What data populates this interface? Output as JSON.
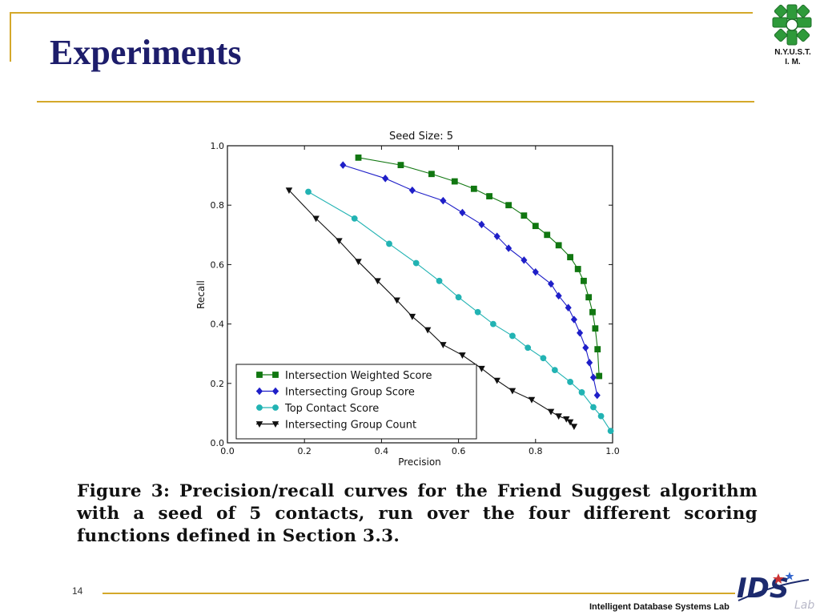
{
  "slide": {
    "title": "Experiments",
    "page_number": "14",
    "footer": "Intelligent Database Systems Lab",
    "logo_text_1": "N.Y.U.S.T.",
    "logo_text_2": "I. M.",
    "lab_logo_text": "IDS",
    "lab_logo_subtext": "Lab",
    "caption": "Figure 3: Precision/recall curves for the Friend Suggest algorithm with a seed of 5 contacts, run over the four different scoring functions defined in Section 3.3."
  },
  "colors": {
    "accent_line": "#d4a82a",
    "title": "#1d1d6b"
  },
  "chart_data": {
    "type": "line",
    "title": "Seed Size: 5",
    "xlabel": "Precision",
    "ylabel": "Recall",
    "xlim": [
      0.0,
      1.0
    ],
    "ylim": [
      0.0,
      1.0
    ],
    "xticks": [
      "0.0",
      "0.2",
      "0.4",
      "0.6",
      "0.8",
      "1.0"
    ],
    "yticks": [
      "0.0",
      "0.2",
      "0.4",
      "0.6",
      "0.8",
      "1.0"
    ],
    "grid": false,
    "legend_position": "lower-left",
    "series": [
      {
        "name": "Intersection Weighted Score",
        "color": "#117711",
        "marker": "square",
        "x": [
          0.34,
          0.45,
          0.53,
          0.59,
          0.64,
          0.68,
          0.73,
          0.77,
          0.8,
          0.83,
          0.86,
          0.89,
          0.91,
          0.925,
          0.938,
          0.948,
          0.955,
          0.961,
          0.965
        ],
        "y": [
          0.96,
          0.935,
          0.905,
          0.88,
          0.855,
          0.83,
          0.8,
          0.765,
          0.73,
          0.7,
          0.665,
          0.625,
          0.585,
          0.545,
          0.49,
          0.44,
          0.385,
          0.315,
          0.225
        ]
      },
      {
        "name": "Intersecting Group Score",
        "color": "#1f1fc8",
        "marker": "diamond",
        "x": [
          0.3,
          0.41,
          0.48,
          0.56,
          0.61,
          0.66,
          0.7,
          0.73,
          0.77,
          0.8,
          0.84,
          0.86,
          0.885,
          0.9,
          0.915,
          0.93,
          0.94,
          0.95,
          0.96
        ],
        "y": [
          0.935,
          0.89,
          0.85,
          0.815,
          0.775,
          0.735,
          0.695,
          0.655,
          0.615,
          0.575,
          0.535,
          0.495,
          0.455,
          0.415,
          0.37,
          0.32,
          0.27,
          0.22,
          0.16
        ]
      },
      {
        "name": "Top Contact Score",
        "color": "#22b3b3",
        "marker": "circle",
        "x": [
          0.21,
          0.33,
          0.42,
          0.49,
          0.55,
          0.6,
          0.65,
          0.69,
          0.74,
          0.78,
          0.82,
          0.85,
          0.89,
          0.92,
          0.95,
          0.97,
          0.995
        ],
        "y": [
          0.845,
          0.755,
          0.67,
          0.605,
          0.545,
          0.49,
          0.44,
          0.4,
          0.36,
          0.32,
          0.285,
          0.245,
          0.205,
          0.17,
          0.12,
          0.09,
          0.04
        ]
      },
      {
        "name": "Intersecting Group Count",
        "color": "#111111",
        "marker": "triangle-down",
        "x": [
          0.16,
          0.23,
          0.29,
          0.34,
          0.39,
          0.44,
          0.48,
          0.52,
          0.56,
          0.61,
          0.66,
          0.7,
          0.74,
          0.79,
          0.84,
          0.86,
          0.88,
          0.89,
          0.9
        ],
        "y": [
          0.85,
          0.755,
          0.68,
          0.61,
          0.545,
          0.48,
          0.425,
          0.38,
          0.33,
          0.295,
          0.25,
          0.21,
          0.175,
          0.145,
          0.105,
          0.09,
          0.08,
          0.07,
          0.055
        ]
      }
    ]
  }
}
